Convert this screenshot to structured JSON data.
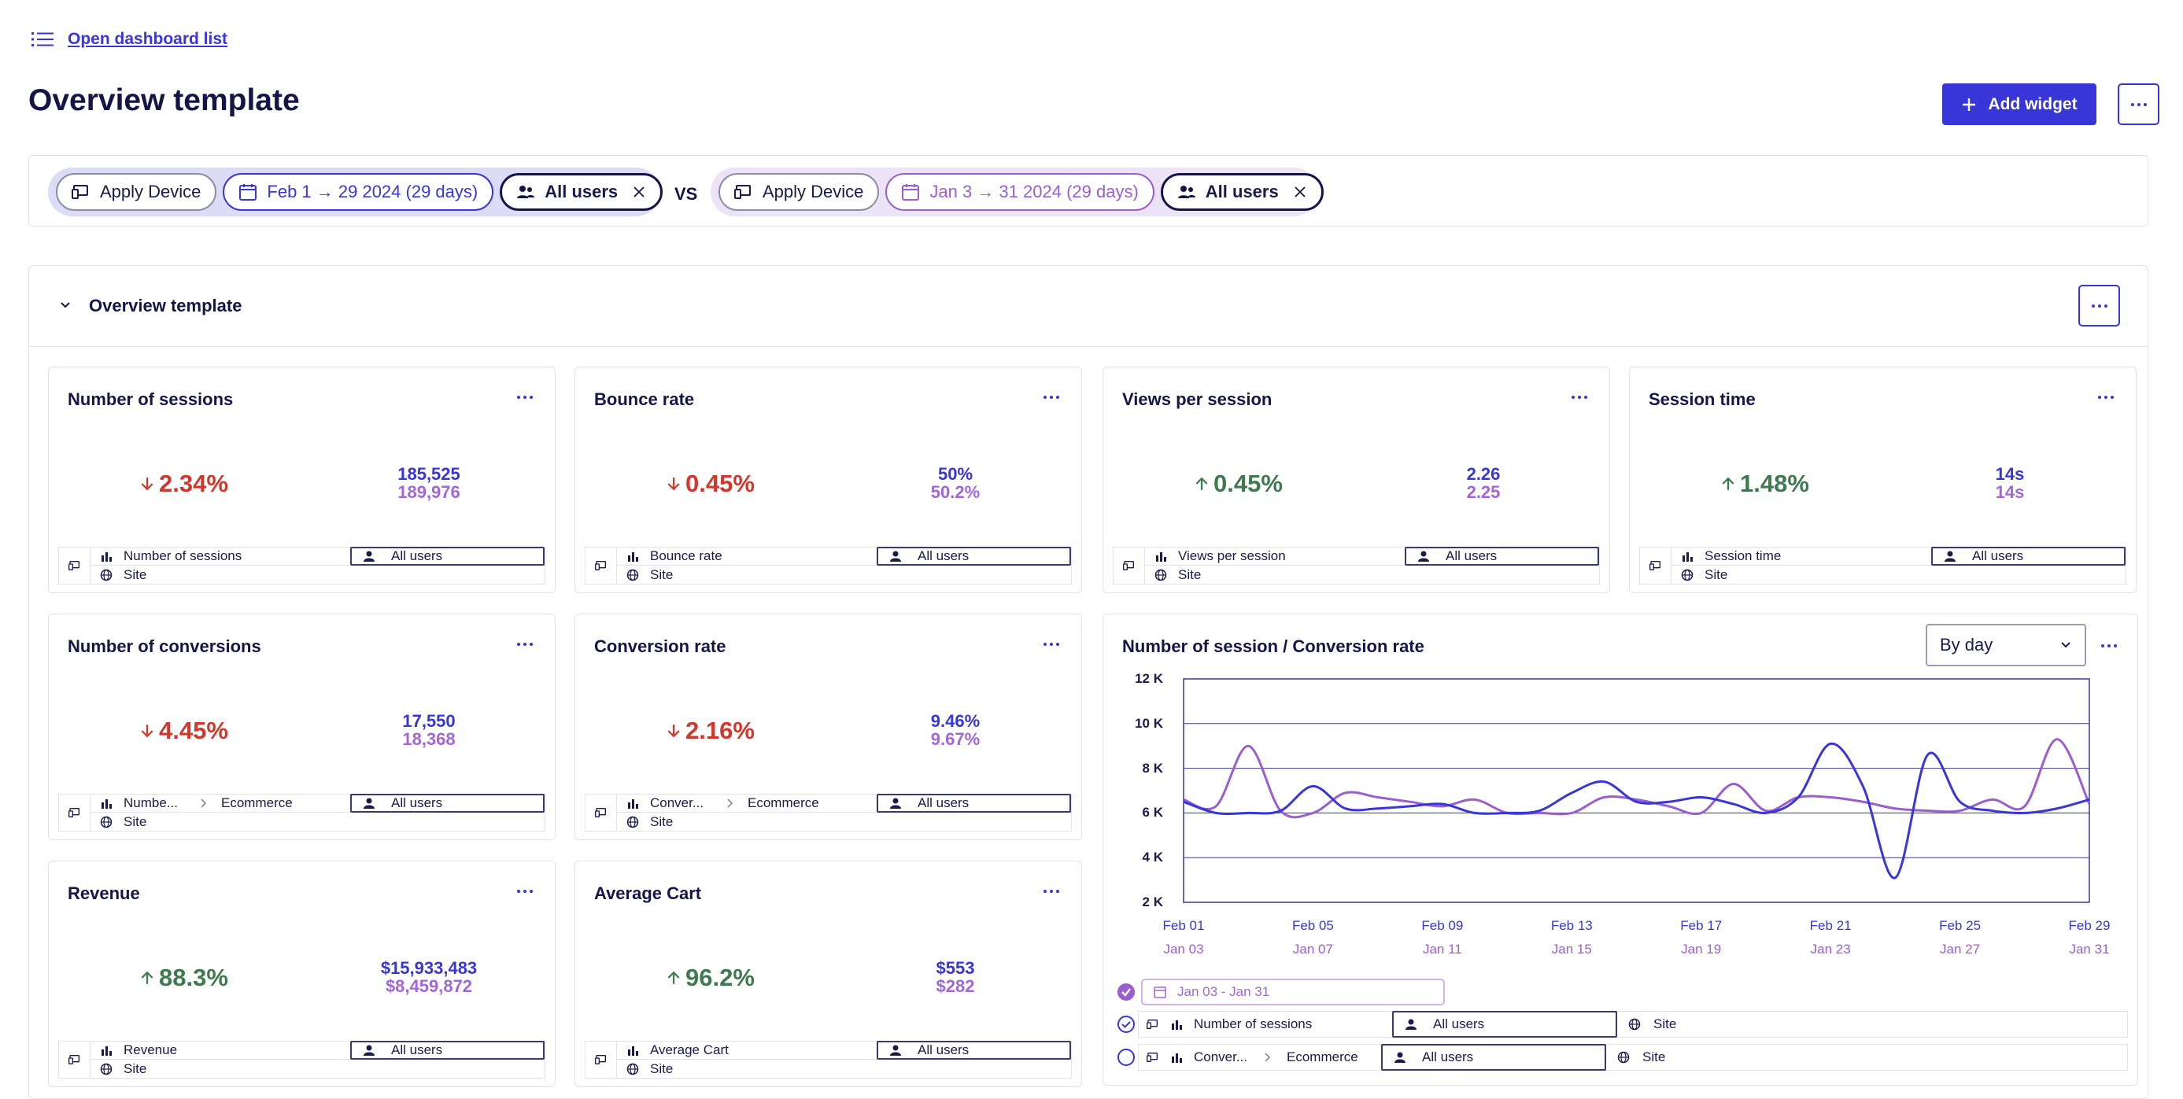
{
  "header": {
    "dashboard_list_link": "Open dashboard list",
    "title": "Overview template",
    "add_widget_label": "Add widget"
  },
  "filters": {
    "primary": {
      "device": "Apply Device",
      "date": "Feb 1 → 29 2024 (29 days)",
      "segment": "All users"
    },
    "vs_label": "VS",
    "comparison": {
      "device": "Apply Device",
      "date": "Jan 3 → 31 2024 (29 days)",
      "segment": "All users"
    }
  },
  "section": {
    "title": "Overview template"
  },
  "cards": [
    {
      "title": "Number of sessions",
      "pct": "2.34%",
      "dir": "down",
      "v1": "185,525",
      "v2": "189,976",
      "metric": "Number of sessions",
      "segment": "All users",
      "site": "Site"
    },
    {
      "title": "Bounce rate",
      "pct": "0.45%",
      "dir": "down",
      "v1": "50%",
      "v2": "50.2%",
      "metric": "Bounce rate",
      "segment": "All users",
      "site": "Site"
    },
    {
      "title": "Views per session",
      "pct": "0.45%",
      "dir": "up",
      "v1": "2.26",
      "v2": "2.25",
      "metric": "Views per session",
      "segment": "All users",
      "site": "Site"
    },
    {
      "title": "Session time",
      "pct": "1.48%",
      "dir": "up",
      "v1": "14s",
      "v2": "14s",
      "metric": "Session time",
      "segment": "All users",
      "site": "Site"
    },
    {
      "title": "Number of conversions",
      "pct": "4.45%",
      "dir": "down",
      "v1": "17,550",
      "v2": "18,368",
      "metric": "Numbe...",
      "goal": "Ecommerce",
      "segment": "All users",
      "site": "Site"
    },
    {
      "title": "Conversion rate",
      "pct": "2.16%",
      "dir": "down",
      "v1": "9.46%",
      "v2": "9.67%",
      "metric": "Conver...",
      "goal": "Ecommerce",
      "segment": "All users",
      "site": "Site"
    },
    {
      "title": "Revenue",
      "pct": "88.3%",
      "dir": "up",
      "v1": "$15,933,483",
      "v2": "$8,459,872",
      "metric": "Revenue",
      "segment": "All users",
      "site": "Site"
    },
    {
      "title": "Average Cart",
      "pct": "96.2%",
      "dir": "up",
      "v1": "$553",
      "v2": "$282",
      "metric": "Average Cart",
      "segment": "All users",
      "site": "Site"
    }
  ],
  "chart_widget": {
    "title": "Number of session / Conversion rate",
    "granularity": "By day",
    "legend": {
      "comparison_date": "Jan 03 - Jan 31",
      "rows": [
        {
          "metric": "Number of sessions",
          "segment": "All users",
          "site": "Site"
        },
        {
          "metric": "Conver...",
          "goal": "Ecommerce",
          "segment": "All users",
          "site": "Site"
        }
      ]
    }
  },
  "chart_data": {
    "type": "line",
    "title": "Number of session / Conversion rate",
    "xlabel": "",
    "ylabel": "",
    "ylim": [
      2000,
      12000
    ],
    "y_ticks": [
      "2 K",
      "4 K",
      "6 K",
      "8 K",
      "10 K",
      "12 K"
    ],
    "y_tick_values": [
      2000,
      4000,
      6000,
      8000,
      10000,
      12000
    ],
    "x_ticks_primary": [
      "Feb 01",
      "Feb 05",
      "Feb 09",
      "Feb 13",
      "Feb 17",
      "Feb 21",
      "Feb 25",
      "Feb 29"
    ],
    "x_ticks_comparison": [
      "Jan 03",
      "Jan 07",
      "Jan 11",
      "Jan 15",
      "Jan 19",
      "Jan 23",
      "Jan 27",
      "Jan 31"
    ],
    "x_tick_index": [
      0,
      4,
      8,
      12,
      16,
      20,
      24,
      28
    ],
    "series": [
      {
        "name": "Feb 1 → 29 2024",
        "color": "#3936d8",
        "values": [
          6500,
          6000,
          6000,
          6100,
          7200,
          6200,
          6200,
          6300,
          6400,
          6000,
          6000,
          6100,
          6900,
          7400,
          6500,
          6500,
          6700,
          6400,
          6000,
          6700,
          9100,
          7200,
          3100,
          8600,
          6500,
          6100,
          6000,
          6200,
          6600
        ]
      },
      {
        "name": "Jan 3 → 31 2024",
        "color": "#9a5ed0",
        "values": [
          6600,
          6300,
          9000,
          6100,
          6000,
          6900,
          6700,
          6500,
          6300,
          6600,
          6000,
          6000,
          6000,
          6700,
          6600,
          6300,
          6000,
          7300,
          6100,
          6700,
          6700,
          6500,
          6200,
          6100,
          6100,
          6600,
          6300,
          9300,
          6400
        ]
      }
    ]
  }
}
